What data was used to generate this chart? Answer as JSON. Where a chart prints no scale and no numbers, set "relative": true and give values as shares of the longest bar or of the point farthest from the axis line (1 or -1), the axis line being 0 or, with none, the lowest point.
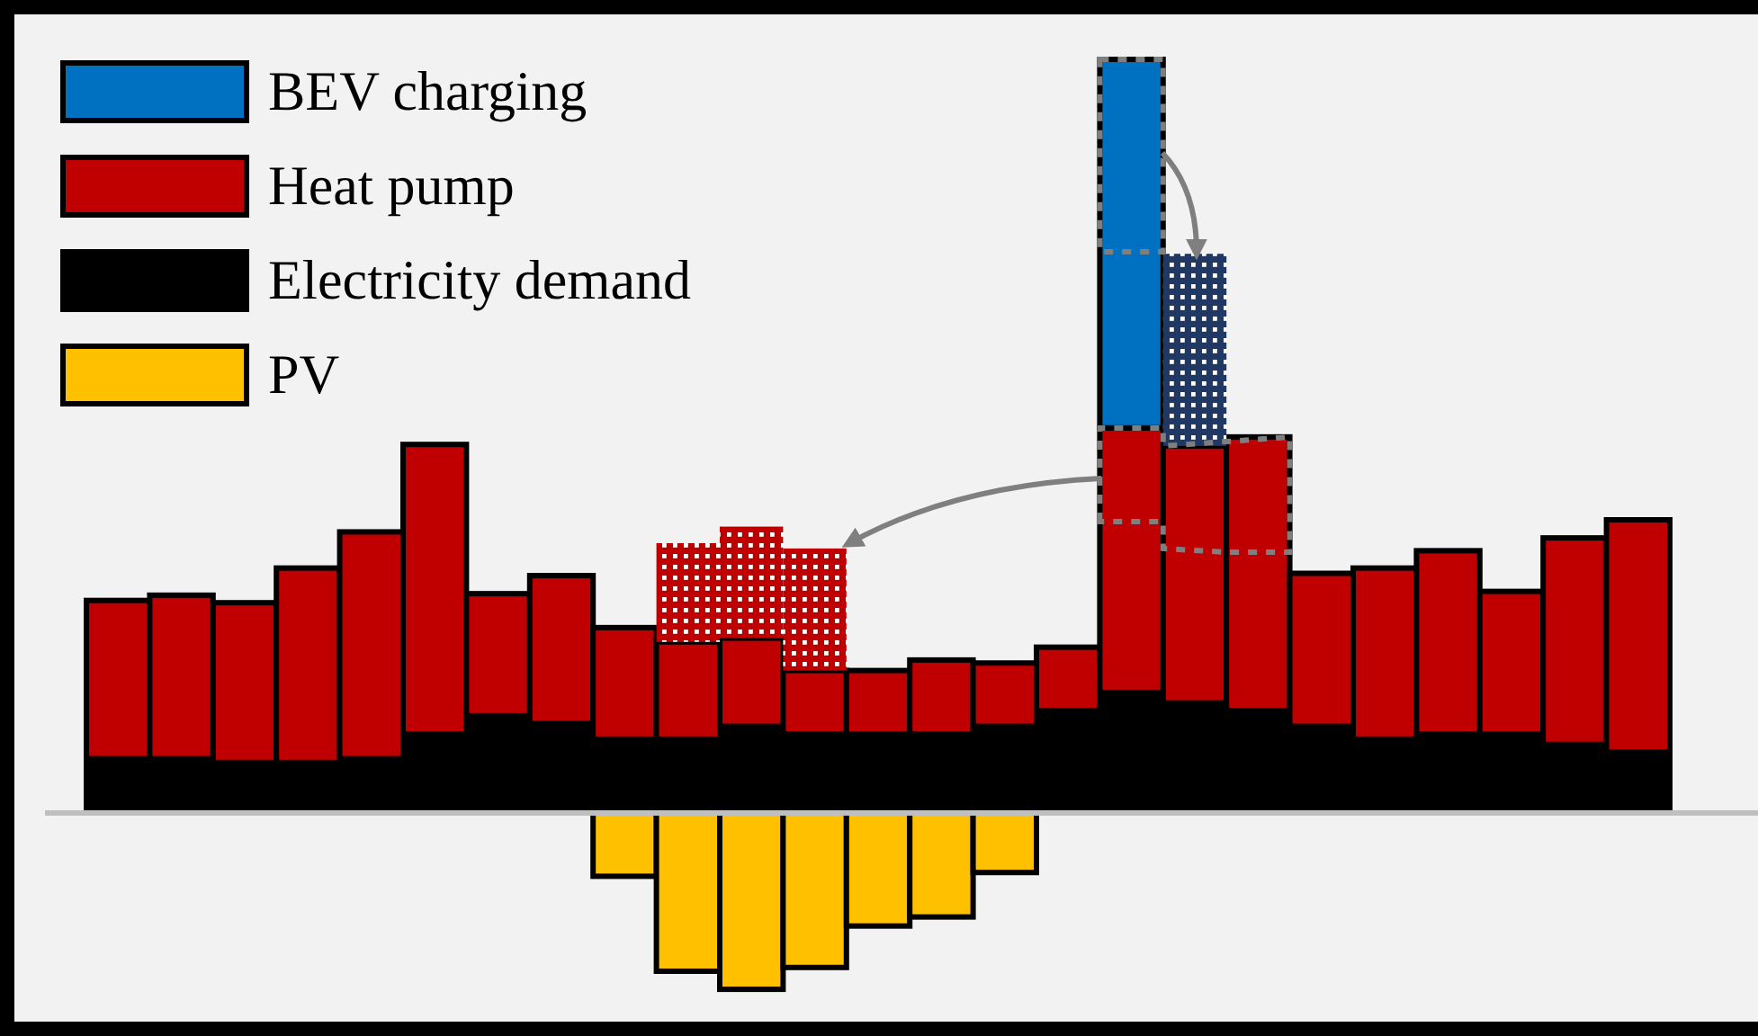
{
  "chart_data": {
    "type": "bar",
    "relative": true,
    "stacked": true,
    "legend": "top left",
    "categories": [
      null,
      null,
      null,
      null,
      null,
      null,
      null,
      null,
      null,
      null,
      null,
      null,
      null,
      null,
      null,
      null,
      null,
      null,
      null,
      null,
      null,
      null,
      null,
      null,
      null
    ],
    "series": [
      {
        "name": "Electricity demand",
        "color": "#000000",
        "values": [
          0.072,
          0.072,
          0.067,
          0.067,
          0.072,
          0.105,
          0.129,
          0.119,
          0.098,
          0.098,
          0.115,
          0.105,
          0.105,
          0.105,
          0.115,
          0.136,
          0.16,
          0.146,
          0.136,
          0.115,
          0.098,
          0.105,
          0.105,
          0.091,
          0.081
        ]
      },
      {
        "name": "Heat pump",
        "color": "#c00000",
        "values": [
          0.21,
          0.217,
          0.212,
          0.258,
          0.301,
          0.384,
          0.162,
          0.196,
          0.148,
          0.129,
          0.117,
          0.084,
          0.084,
          0.098,
          0.084,
          0.084,
          0.351,
          0.341,
          0.363,
          0.203,
          0.227,
          0.243,
          0.189,
          0.274,
          0.308
        ]
      },
      {
        "color": "#c00000",
        "line_style": "dotted",
        "values": [
          null,
          null,
          null,
          null,
          null,
          null,
          null,
          null,
          null,
          0.131,
          0.148,
          0.162,
          null,
          null,
          null,
          null,
          null,
          null,
          null,
          null,
          null,
          null,
          null,
          null,
          null
        ]
      },
      {
        "name": "BEV charging",
        "color": "#0070c0",
        "values": [
          null,
          null,
          null,
          null,
          null,
          null,
          null,
          null,
          null,
          null,
          null,
          null,
          null,
          null,
          null,
          null,
          0.489,
          null,
          null,
          null,
          null,
          null,
          null,
          null,
          null
        ]
      },
      {
        "color": "#203864",
        "line_style": "dotted",
        "values": [
          null,
          null,
          null,
          null,
          null,
          null,
          null,
          null,
          null,
          null,
          null,
          null,
          null,
          null,
          null,
          null,
          null,
          0.255,
          null,
          null,
          null,
          null,
          null,
          null,
          null
        ]
      },
      {
        "name": "PV",
        "color": "#ffc000",
        "values": [
          null,
          null,
          null,
          null,
          null,
          null,
          null,
          null,
          -0.084,
          -0.21,
          -0.234,
          -0.205,
          -0.15,
          -0.138,
          -0.079,
          null,
          null,
          null,
          null,
          null,
          null,
          null,
          null,
          null,
          null
        ]
      }
    ]
  }
}
